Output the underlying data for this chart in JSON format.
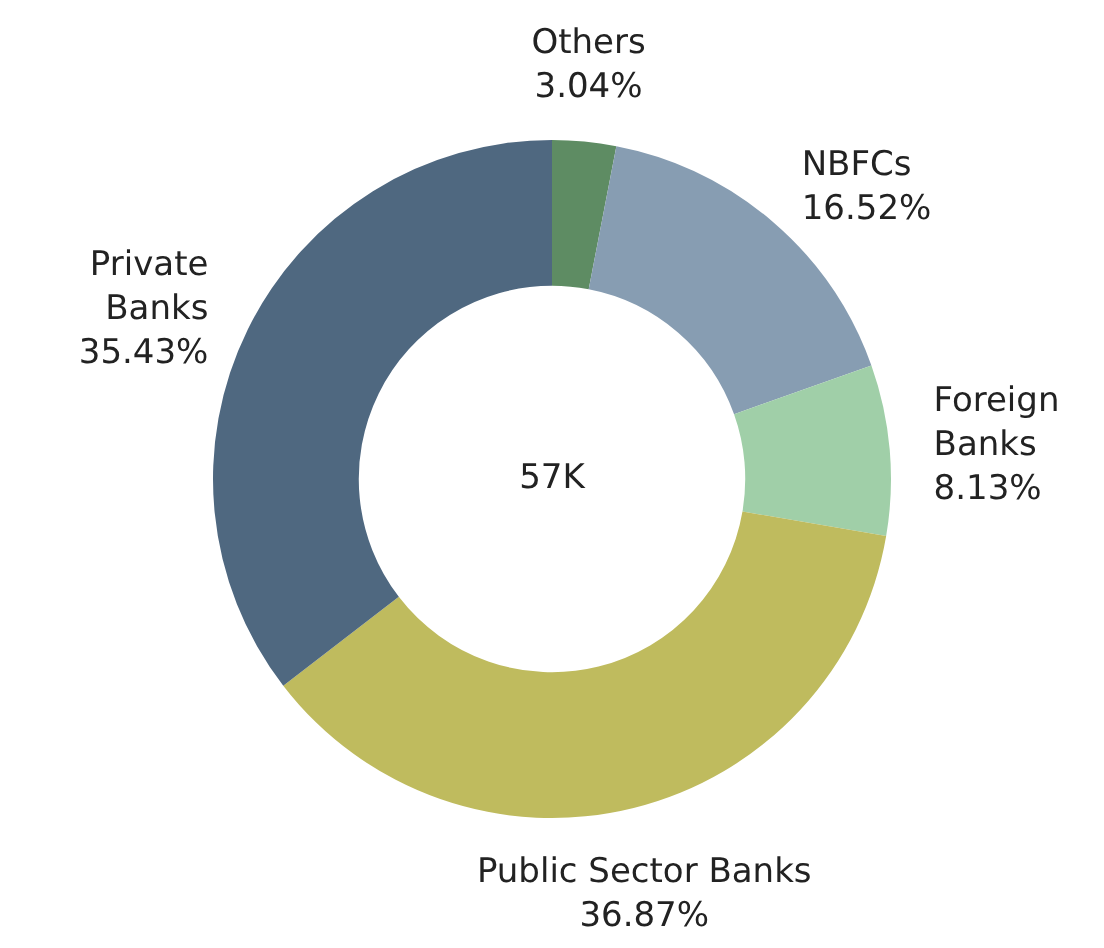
{
  "chart_data": {
    "type": "donut",
    "categories": [
      "Others",
      "NBFCs",
      "Foreign Banks",
      "Public Sector Banks",
      "Private Banks"
    ],
    "values": [
      3.04,
      16.52,
      8.13,
      36.87,
      35.43
    ],
    "value_labels": [
      "3.04%",
      "16.52%",
      "8.13%",
      "36.87%",
      "35.43%"
    ],
    "colors": [
      "#5e8c63",
      "#879db2",
      "#a0cfa8",
      "#bfbb5e",
      "#4f6880"
    ],
    "annotations": [
      "57K"
    ],
    "legend": false
  }
}
